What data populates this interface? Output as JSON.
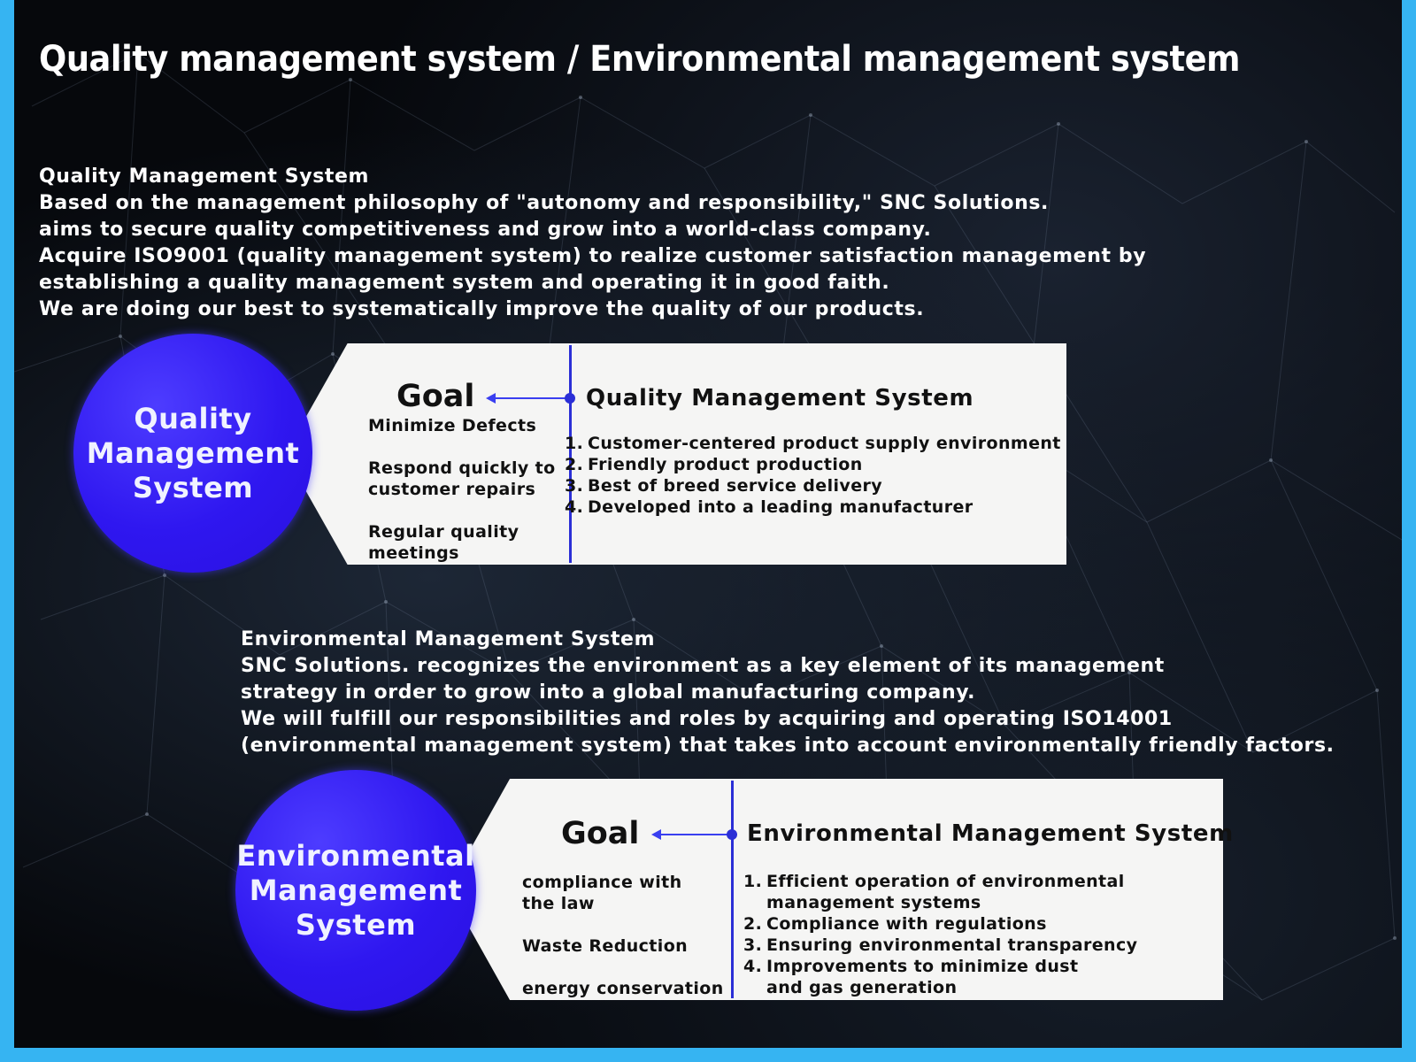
{
  "title": "Quality management system / Environmental management system",
  "quality": {
    "heading": "Quality Management System",
    "lines": [
      "Based on the management philosophy of \"autonomy and responsibility,\" SNC Solutions.",
      "aims to secure quality competitiveness and grow into a world-class company.",
      "Acquire ISO9001 (quality management system) to realize customer satisfaction management by",
      "establishing a quality management system and operating it in good faith.",
      "We are doing our best to systematically improve the quality of our products."
    ],
    "circle_label": "Quality\nManagement\nSystem",
    "goal_title": "Goal",
    "goals": [
      "Minimize Defects",
      "Respond quickly to\ncustomer repairs",
      "Regular quality\nmeetings"
    ],
    "system_title": "Quality Management System",
    "items": [
      {
        "num": "1.",
        "text": "Customer-centered product supply environment"
      },
      {
        "num": "2.",
        "text": "Friendly product production"
      },
      {
        "num": "3.",
        "text": "Best of breed service delivery"
      },
      {
        "num": "4.",
        "text": "Developed into a leading manufacturer"
      }
    ]
  },
  "environment": {
    "heading": "Environmental Management System",
    "lines": [
      "SNC Solutions. recognizes the environment as a key element of its management",
      "strategy in order to grow into a global manufacturing company.",
      "We will fulfill our responsibilities and roles by acquiring and operating ISO14001",
      "(environmental management system) that takes into account environmentally friendly factors."
    ],
    "circle_label": "Environmental\nManagement\nSystem",
    "goal_title": "Goal",
    "goals": [
      "compliance with\nthe law",
      "Waste Reduction",
      "energy conservation"
    ],
    "system_title": "Environmental Management System",
    "items": [
      {
        "num": "1.",
        "text": "Efficient operation of environmental\nmanagement systems"
      },
      {
        "num": "2.",
        "text": "Compliance with regulations"
      },
      {
        "num": "3.",
        "text": "Ensuring environmental transparency"
      },
      {
        "num": "4.",
        "text": "Improvements to minimize dust\nand gas generation"
      }
    ]
  },
  "colors": {
    "frame_border": "#36b4f2",
    "circle_fill": "#2f17f0",
    "accent_line": "#2b2fd6",
    "card_fill": "#f5f5f4"
  }
}
